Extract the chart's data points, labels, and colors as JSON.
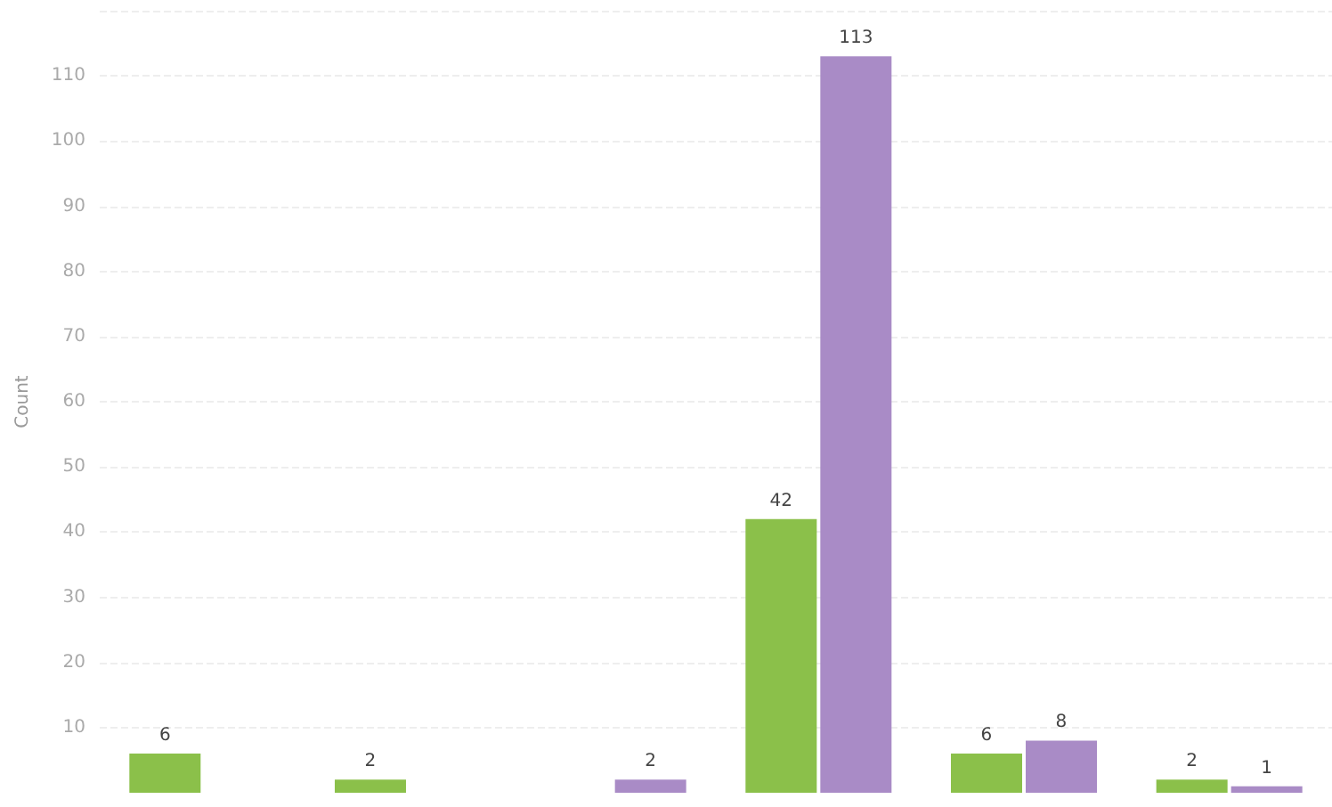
{
  "chart_data": {
    "type": "bar",
    "ylabel": "Count",
    "categories": [
      null,
      null,
      null,
      null,
      null,
      null
    ],
    "series": [
      {
        "color": "#8bc04a",
        "values": [
          6,
          2,
          null,
          42,
          6,
          2
        ]
      },
      {
        "color": "#a98bc6",
        "values": [
          null,
          null,
          2,
          113,
          8,
          1
        ]
      }
    ],
    "ylim": [
      0,
      120
    ],
    "yticks": [
      10,
      20,
      30,
      40,
      50,
      60,
      70,
      80,
      90,
      100,
      110,
      {
        "value": 120,
        "label": null
      }
    ],
    "grid": "y",
    "data_labels": true
  }
}
